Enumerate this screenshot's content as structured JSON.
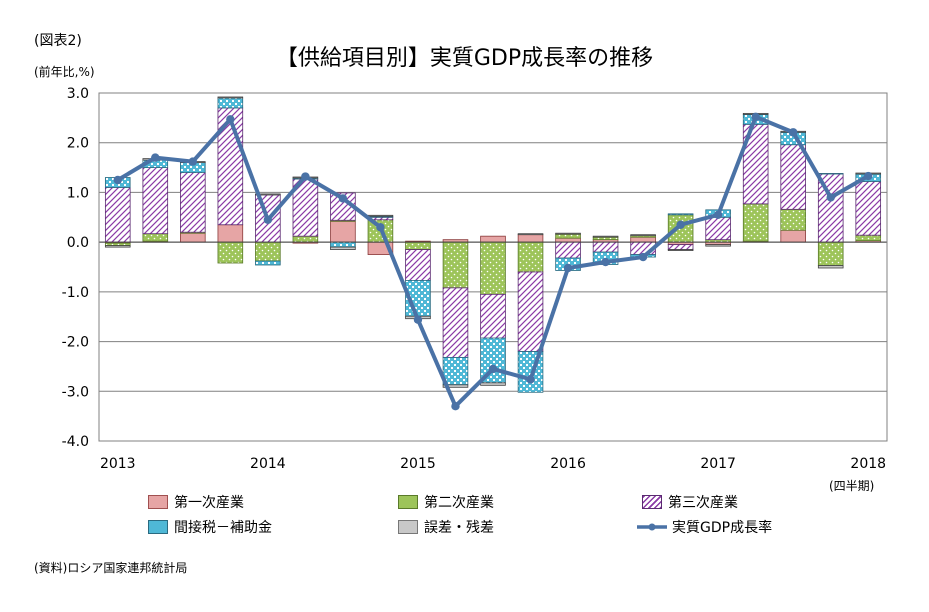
{
  "figure_label": "(図表2)",
  "unit_label": "(前年比,%)",
  "title": "【供給項目別】実質GDP成長率の推移",
  "period_unit": "(四半期)",
  "source": "(資料)ロシア国家連邦統計局",
  "chart_data": {
    "type": "bar",
    "stacked": true,
    "title": "【供給項目別】実質GDP成長率の推移",
    "ylabel": "(前年比,%)",
    "xlabel": "(四半期)",
    "ylim": [
      -4.0,
      3.0
    ],
    "yticks": [
      "3.0",
      "2.0",
      "1.0",
      "0.0",
      "-1.0",
      "-2.0",
      "-3.0",
      "-4.0"
    ],
    "grid": true,
    "legend_position": "bottom",
    "x_tick_labels": [
      {
        "label": "2013",
        "index": 0
      },
      {
        "label": "2014",
        "index": 4
      },
      {
        "label": "2015",
        "index": 8
      },
      {
        "label": "2016",
        "index": 12
      },
      {
        "label": "2017",
        "index": 16
      },
      {
        "label": "2018",
        "index": 20
      }
    ],
    "categories": [
      "2013Q1",
      "2013Q2",
      "2013Q3",
      "2013Q4",
      "2014Q1",
      "2014Q2",
      "2014Q3",
      "2014Q4",
      "2015Q1",
      "2015Q2",
      "2015Q3",
      "2015Q4",
      "2016Q1",
      "2016Q2",
      "2016Q3",
      "2016Q4",
      "2017Q1",
      "2017Q2",
      "2017Q3",
      "2017Q4",
      "2018Q1"
    ],
    "series": [
      {
        "name": "第一次産業",
        "kind": "bar",
        "color": "#e6a5a5",
        "values": [
          -0.02,
          0.02,
          0.18,
          0.35,
          0.0,
          -0.02,
          0.42,
          -0.25,
          0.02,
          0.05,
          0.12,
          0.15,
          0.08,
          0.05,
          0.1,
          -0.05,
          -0.05,
          0.02,
          0.24,
          0.0,
          0.03
        ]
      },
      {
        "name": "第二次産業",
        "kind": "bar",
        "color": "#9dc45a",
        "values": [
          -0.05,
          0.15,
          0.02,
          -0.42,
          -0.38,
          0.12,
          0.02,
          0.45,
          -0.15,
          -0.92,
          -1.05,
          -0.6,
          0.08,
          0.05,
          0.03,
          0.55,
          0.05,
          0.75,
          0.42,
          -0.47,
          0.11
        ]
      },
      {
        "name": "第三次産業",
        "kind": "bar",
        "color": "#c9a0dc",
        "values": [
          1.1,
          1.33,
          1.2,
          2.35,
          0.95,
          1.15,
          0.55,
          0.05,
          -0.62,
          -1.4,
          -0.88,
          -1.6,
          -0.32,
          -0.2,
          -0.25,
          -0.1,
          0.45,
          1.6,
          1.3,
          1.38,
          1.08
        ]
      },
      {
        "name": "間接税－補助金",
        "kind": "bar",
        "color": "#4fb8d6",
        "values": [
          0.2,
          0.15,
          0.2,
          0.2,
          -0.08,
          0.02,
          -0.1,
          0.02,
          -0.72,
          -0.55,
          -0.9,
          -0.82,
          -0.25,
          -0.25,
          -0.05,
          0.02,
          0.15,
          0.2,
          0.25,
          0.0,
          0.15
        ]
      },
      {
        "name": "誤差・残差",
        "kind": "bar",
        "color": "#c8c8c8",
        "values": [
          -0.03,
          0.03,
          0.02,
          0.02,
          0.02,
          0.02,
          -0.05,
          0.02,
          -0.05,
          -0.05,
          -0.05,
          0.02,
          0.02,
          0.02,
          0.02,
          -0.02,
          -0.03,
          0.02,
          0.02,
          -0.05,
          0.02
        ]
      },
      {
        "name": "実質GDP成長率",
        "kind": "line",
        "color": "#4a72a6",
        "values": [
          1.25,
          1.7,
          1.62,
          2.47,
          0.45,
          1.32,
          0.88,
          0.3,
          -1.56,
          -3.3,
          -2.55,
          -2.76,
          -0.52,
          -0.4,
          -0.3,
          0.35,
          0.55,
          2.52,
          2.21,
          0.9,
          1.33
        ]
      }
    ]
  }
}
